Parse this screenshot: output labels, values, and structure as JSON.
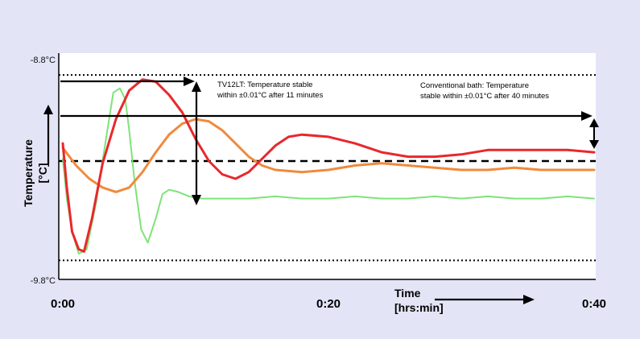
{
  "chart_data": {
    "type": "line",
    "title": "",
    "ylabel_line1": "Temperature",
    "ylabel_line2": "[°C]",
    "xlabel_line1": "Time",
    "xlabel_line2": "[hrs:min]",
    "y_ticks": [
      {
        "value": -8.8,
        "label": "-8.8°C"
      },
      {
        "value": -9.8,
        "label": "-9.8°C"
      }
    ],
    "x_ticks": [
      {
        "value": 0,
        "label": "0:00"
      },
      {
        "value": 20,
        "label": "0:20"
      },
      {
        "value": 40,
        "label": "0:40"
      }
    ],
    "xlim": [
      0,
      40
    ],
    "ylim": [
      -9.8,
      -8.8
    ],
    "grid": false,
    "reference_lines": [
      {
        "style": "dotted",
        "y": -8.87
      },
      {
        "style": "dashed",
        "y": -9.26
      },
      {
        "style": "dotted",
        "y": -9.71
      }
    ],
    "annotations": [
      {
        "lines": [
          "TV12LT: Temperature stable",
          "within ±0.01°C after 11 minutes"
        ]
      },
      {
        "lines": [
          "Conventional bath: Temperature",
          "stable within ±0.01°C after 40 minutes"
        ]
      }
    ],
    "series": [
      {
        "color": "#7fe37a",
        "x": [
          0,
          0.3,
          0.7,
          1.2,
          1.8,
          2.5,
          3.2,
          3.8,
          4.3,
          4.7,
          5.0,
          5.4,
          5.9,
          6.4,
          7.0,
          7.5,
          8.0,
          8.7,
          9.5,
          10.5,
          12,
          14,
          16,
          18,
          20,
          22,
          24,
          26,
          28,
          30,
          32,
          34,
          36,
          38,
          40
        ],
        "y": [
          -9.25,
          -9.43,
          -9.58,
          -9.68,
          -9.66,
          -9.45,
          -9.18,
          -8.95,
          -8.93,
          -8.98,
          -9.12,
          -9.35,
          -9.57,
          -9.63,
          -9.52,
          -9.41,
          -9.39,
          -9.4,
          -9.42,
          -9.43,
          -9.43,
          -9.43,
          -9.42,
          -9.43,
          -9.43,
          -9.42,
          -9.43,
          -9.43,
          -9.42,
          -9.43,
          -9.42,
          -9.43,
          -9.43,
          -9.42,
          -9.43
        ]
      },
      {
        "color": "#f08a3c",
        "x": [
          0,
          1,
          2,
          3,
          4,
          5,
          6,
          7,
          8,
          9,
          10,
          11,
          12,
          13,
          14,
          15,
          16,
          18,
          20,
          22,
          24,
          26,
          28,
          30,
          32,
          34,
          36,
          38,
          40
        ],
        "y": [
          -9.2,
          -9.28,
          -9.34,
          -9.38,
          -9.4,
          -9.38,
          -9.31,
          -9.22,
          -9.14,
          -9.09,
          -9.07,
          -9.08,
          -9.12,
          -9.18,
          -9.24,
          -9.28,
          -9.3,
          -9.31,
          -9.3,
          -9.28,
          -9.27,
          -9.28,
          -9.29,
          -9.3,
          -9.3,
          -9.29,
          -9.3,
          -9.3,
          -9.3
        ]
      },
      {
        "color": "#e8282c",
        "x": [
          0,
          0.3,
          0.7,
          1.2,
          1.6,
          2.2,
          3,
          4,
          5,
          6,
          7,
          8,
          9,
          10,
          11,
          12,
          13,
          14,
          15,
          16,
          17,
          18,
          20,
          22,
          24,
          26,
          28,
          30,
          32,
          34,
          36,
          38,
          40
        ],
        "y": [
          -9.18,
          -9.38,
          -9.58,
          -9.66,
          -9.67,
          -9.52,
          -9.27,
          -9.07,
          -8.94,
          -8.89,
          -8.9,
          -8.96,
          -9.04,
          -9.16,
          -9.26,
          -9.32,
          -9.34,
          -9.31,
          -9.25,
          -9.19,
          -9.15,
          -9.14,
          -9.15,
          -9.18,
          -9.22,
          -9.24,
          -9.24,
          -9.23,
          -9.21,
          -9.21,
          -9.21,
          -9.21,
          -9.22
        ]
      }
    ]
  }
}
